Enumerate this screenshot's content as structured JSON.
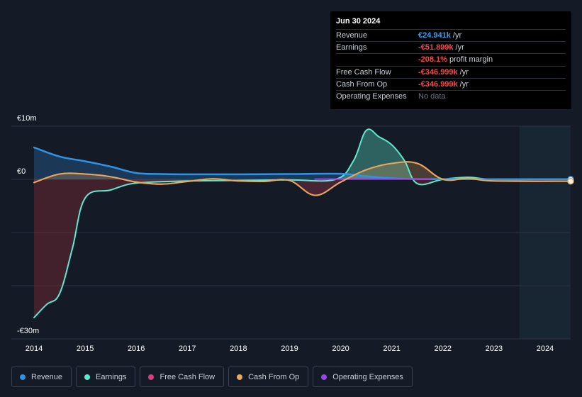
{
  "tooltip": {
    "date": "Jun 30 2024",
    "rows": [
      {
        "label": "Revenue",
        "value": "€24.941k",
        "unit": "/yr",
        "color": "#3b9fe8"
      },
      {
        "label": "Earnings",
        "value": "-€51.899k",
        "unit": "/yr",
        "color": "#ee4c4c"
      },
      {
        "label": "",
        "value": "-208.1%",
        "unit": "profit margin",
        "color": "#ee4c4c"
      },
      {
        "label": "Free Cash Flow",
        "value": "-€346.999k",
        "unit": "/yr",
        "color": "#ee4c4c"
      },
      {
        "label": "Cash From Op",
        "value": "-€346.999k",
        "unit": "/yr",
        "color": "#ee4c4c"
      },
      {
        "label": "Operating Expenses",
        "value": "No data",
        "unit": "",
        "color": "#6b7280"
      }
    ]
  },
  "legend": [
    {
      "label": "Revenue",
      "color": "#2e93e6"
    },
    {
      "label": "Earnings",
      "color": "#5ee8cd"
    },
    {
      "label": "Free Cash Flow",
      "color": "#d1427f"
    },
    {
      "label": "Cash From Op",
      "color": "#e9a85a"
    },
    {
      "label": "Operating Expenses",
      "color": "#9b45e6"
    }
  ],
  "chart_data": {
    "type": "area",
    "title": "",
    "xlabel": "",
    "ylabel": "",
    "x_range": [
      2014.0,
      2024.5
    ],
    "ylim": [
      -30,
      10
    ],
    "y_tick_labels": [
      {
        "value": 10,
        "label": "€10m"
      },
      {
        "value": 0,
        "label": "€0"
      },
      {
        "value": -30,
        "label": "-€30m"
      }
    ],
    "gridlines": [
      10,
      0,
      -10,
      -20
    ],
    "x_ticks": [
      "2014",
      "2015",
      "2016",
      "2017",
      "2018",
      "2019",
      "2020",
      "2021",
      "2022",
      "2023",
      "2024"
    ],
    "forecast_start": 2023.5,
    "series": [
      {
        "name": "Revenue",
        "color": "#2e93e6",
        "points": [
          [
            2014.0,
            6.0
          ],
          [
            2014.5,
            4.3
          ],
          [
            2015.0,
            3.4
          ],
          [
            2015.5,
            2.4
          ],
          [
            2016.0,
            1.2
          ],
          [
            2016.5,
            1.0
          ],
          [
            2017.0,
            0.95
          ],
          [
            2018.0,
            0.95
          ],
          [
            2019.0,
            1.0
          ],
          [
            2020.0,
            1.05
          ],
          [
            2020.5,
            0.6
          ],
          [
            2021.0,
            0.2
          ],
          [
            2021.5,
            0.05
          ],
          [
            2022.0,
            0.05
          ],
          [
            2023.0,
            0.03
          ],
          [
            2024.5,
            0.02
          ]
        ]
      },
      {
        "name": "Earnings",
        "color": "#5ee8cd",
        "points": [
          [
            2014.0,
            -26.0
          ],
          [
            2014.25,
            -23.5
          ],
          [
            2014.5,
            -21.5
          ],
          [
            2014.75,
            -13.0
          ],
          [
            2015.0,
            -3.5
          ],
          [
            2015.5,
            -2.0
          ],
          [
            2016.0,
            -0.7
          ],
          [
            2017.0,
            -0.3
          ],
          [
            2018.0,
            -0.2
          ],
          [
            2019.0,
            -0.1
          ],
          [
            2019.9,
            0.0
          ],
          [
            2020.25,
            3.5
          ],
          [
            2020.5,
            9.2
          ],
          [
            2020.75,
            8.0
          ],
          [
            2021.0,
            6.5
          ],
          [
            2021.25,
            3.5
          ],
          [
            2021.5,
            -0.8
          ],
          [
            2022.0,
            0.0
          ],
          [
            2022.5,
            0.4
          ],
          [
            2023.0,
            0.0
          ],
          [
            2024.5,
            0.0
          ]
        ]
      },
      {
        "name": "Free Cash Flow",
        "color": "#d1427f",
        "points": [
          [
            2014.0,
            -0.6
          ],
          [
            2014.5,
            1.0
          ],
          [
            2015.0,
            1.0
          ],
          [
            2015.5,
            0.5
          ],
          [
            2016.0,
            -0.5
          ],
          [
            2016.5,
            -0.9
          ],
          [
            2017.0,
            -0.4
          ],
          [
            2017.5,
            0.1
          ],
          [
            2018.0,
            -0.3
          ],
          [
            2018.5,
            -0.4
          ],
          [
            2019.0,
            -0.2
          ],
          [
            2019.5,
            -3.0
          ],
          [
            2020.0,
            -0.5
          ],
          [
            2020.5,
            1.8
          ],
          [
            2021.0,
            3.0
          ],
          [
            2021.5,
            3.0
          ],
          [
            2022.0,
            0.0
          ],
          [
            2022.5,
            0.2
          ],
          [
            2023.0,
            -0.3
          ],
          [
            2024.5,
            -0.35
          ]
        ]
      },
      {
        "name": "Cash From Op",
        "color": "#e9a85a",
        "points": [
          [
            2014.0,
            -0.6
          ],
          [
            2014.5,
            1.0
          ],
          [
            2015.0,
            1.0
          ],
          [
            2015.5,
            0.5
          ],
          [
            2016.0,
            -0.5
          ],
          [
            2016.5,
            -0.9
          ],
          [
            2017.0,
            -0.4
          ],
          [
            2017.5,
            0.1
          ],
          [
            2018.0,
            -0.3
          ],
          [
            2018.5,
            -0.4
          ],
          [
            2019.0,
            -0.2
          ],
          [
            2019.5,
            -3.0
          ],
          [
            2020.0,
            -0.5
          ],
          [
            2020.5,
            1.8
          ],
          [
            2021.0,
            3.0
          ],
          [
            2021.5,
            3.0
          ],
          [
            2022.0,
            0.0
          ],
          [
            2022.5,
            0.2
          ],
          [
            2023.0,
            -0.3
          ],
          [
            2024.5,
            -0.35
          ]
        ]
      },
      {
        "name": "Operating Expenses",
        "color": "#9b45e6",
        "points": [
          [
            2019.5,
            0.05
          ],
          [
            2020.0,
            0.05
          ],
          [
            2020.5,
            0.05
          ],
          [
            2021.0,
            0.05
          ],
          [
            2021.75,
            0.05
          ]
        ]
      }
    ]
  }
}
